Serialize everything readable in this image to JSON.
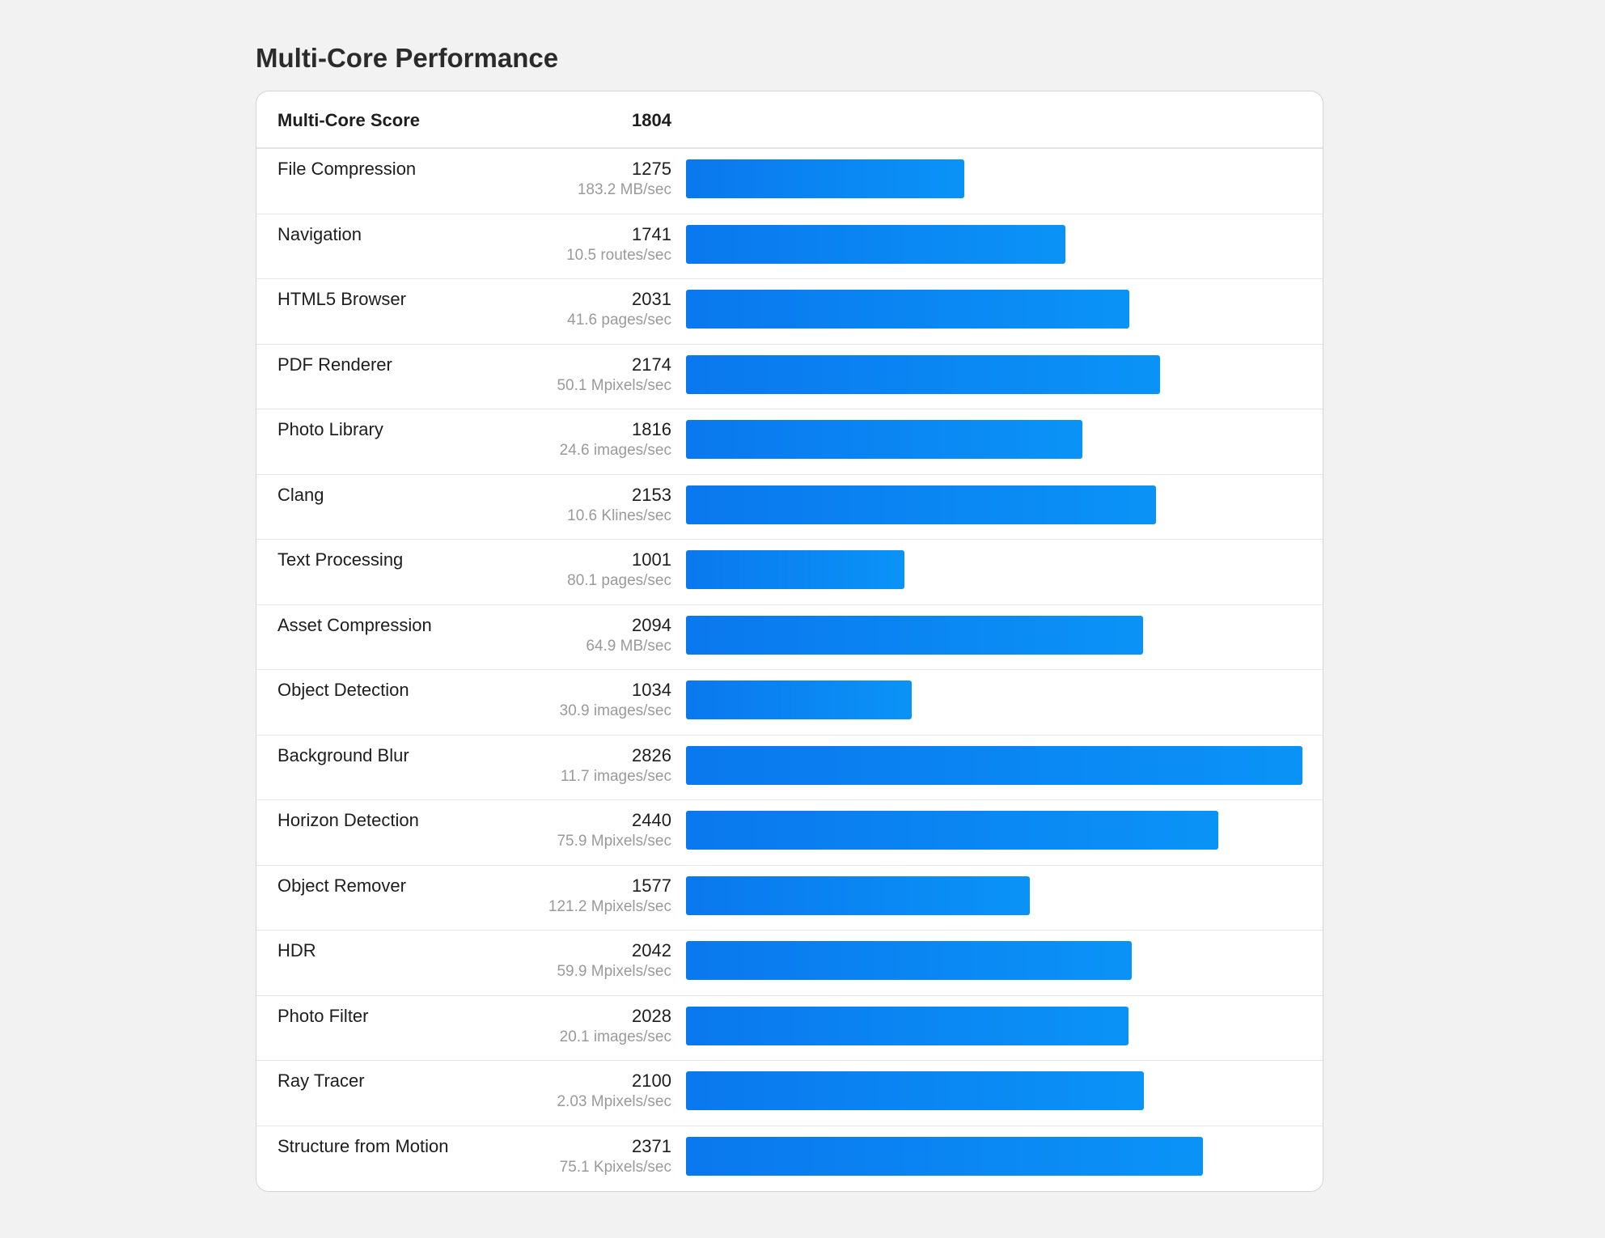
{
  "page": {
    "title": "Multi-Core Performance"
  },
  "summary": {
    "label": "Multi-Core Score",
    "score": "1804"
  },
  "colors": {
    "bar_start": "#0a78ee",
    "bar_end": "#0a93f7",
    "background": "#f2f2f2"
  },
  "benchmarks": [
    {
      "name": "File Compression",
      "score": "1275",
      "rate": "183.2 MB/sec",
      "value": 1275
    },
    {
      "name": "Navigation",
      "score": "1741",
      "rate": "10.5 routes/sec",
      "value": 1741
    },
    {
      "name": "HTML5 Browser",
      "score": "2031",
      "rate": "41.6 pages/sec",
      "value": 2031
    },
    {
      "name": "PDF Renderer",
      "score": "2174",
      "rate": "50.1 Mpixels/sec",
      "value": 2174
    },
    {
      "name": "Photo Library",
      "score": "1816",
      "rate": "24.6 images/sec",
      "value": 1816
    },
    {
      "name": "Clang",
      "score": "2153",
      "rate": "10.6 Klines/sec",
      "value": 2153
    },
    {
      "name": "Text Processing",
      "score": "1001",
      "rate": "80.1 pages/sec",
      "value": 1001
    },
    {
      "name": "Asset Compression",
      "score": "2094",
      "rate": "64.9 MB/sec",
      "value": 2094
    },
    {
      "name": "Object Detection",
      "score": "1034",
      "rate": "30.9 images/sec",
      "value": 1034
    },
    {
      "name": "Background Blur",
      "score": "2826",
      "rate": "11.7 images/sec",
      "value": 2826
    },
    {
      "name": "Horizon Detection",
      "score": "2440",
      "rate": "75.9 Mpixels/sec",
      "value": 2440
    },
    {
      "name": "Object Remover",
      "score": "1577",
      "rate": "121.2 Mpixels/sec",
      "value": 1577
    },
    {
      "name": "HDR",
      "score": "2042",
      "rate": "59.9 Mpixels/sec",
      "value": 2042
    },
    {
      "name": "Photo Filter",
      "score": "2028",
      "rate": "20.1 images/sec",
      "value": 2028
    },
    {
      "name": "Ray Tracer",
      "score": "2100",
      "rate": "2.03 Mpixels/sec",
      "value": 2100
    },
    {
      "name": "Structure from Motion",
      "score": "2371",
      "rate": "75.1 Kpixels/sec",
      "value": 2371
    }
  ]
}
